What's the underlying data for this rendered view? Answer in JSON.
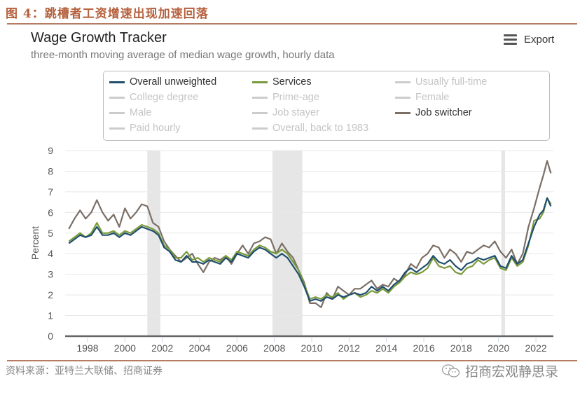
{
  "figure": {
    "title": "图 4：跳槽者工资增速出现加速回落",
    "source": "资料来源：亚特兰大联储、招商证券",
    "brand": "招商宏观静思录"
  },
  "header": {
    "export_label": "Export",
    "menu_icon": "hamburger-menu-icon"
  },
  "chart_data": {
    "type": "line",
    "title": "Wage Growth Tracker",
    "subtitle": "three-month moving average of median wage growth, hourly data",
    "xlabel": "",
    "ylabel": "Percent",
    "ylim": [
      0,
      9
    ],
    "xlim": [
      1997,
      2022.9
    ],
    "yticks": [
      "0",
      "1",
      "2",
      "3",
      "4",
      "5",
      "6",
      "7",
      "8",
      "9"
    ],
    "xticks": [
      "1998",
      "2000",
      "2002",
      "2004",
      "2006",
      "2008",
      "2010",
      "2012",
      "2014",
      "2016",
      "2018",
      "2020",
      "2022"
    ],
    "grid": true,
    "legend_position": "top",
    "recessions": [
      [
        2001.2,
        2001.9
      ],
      [
        2007.9,
        2009.5
      ],
      [
        2020.15,
        2020.35
      ]
    ],
    "legend": [
      {
        "label": "Overall unweighted",
        "color": "#1f4e6e",
        "active": true
      },
      {
        "label": "Services",
        "color": "#7a9a3a",
        "active": true
      },
      {
        "label": "Usually full-time",
        "color": "#cccccc",
        "active": false
      },
      {
        "label": "College degree",
        "color": "#cccccc",
        "active": false
      },
      {
        "label": "Prime-age",
        "color": "#cccccc",
        "active": false
      },
      {
        "label": "Female",
        "color": "#cccccc",
        "active": false
      },
      {
        "label": "Male",
        "color": "#cccccc",
        "active": false
      },
      {
        "label": "Job stayer",
        "color": "#cccccc",
        "active": false
      },
      {
        "label": "Job switcher",
        "color": "#7b6f66",
        "active": true
      },
      {
        "label": "Paid hourly",
        "color": "#cccccc",
        "active": false
      },
      {
        "label": "Overall, back to 1983",
        "color": "#cccccc",
        "active": false
      }
    ],
    "series": [
      {
        "name": "Job switcher",
        "color": "#7b6f66",
        "x": [
          1997.0,
          1997.3,
          1997.6,
          1997.9,
          1998.2,
          1998.5,
          1998.8,
          1999.1,
          1999.4,
          1999.7,
          2000.0,
          2000.3,
          2000.6,
          2000.9,
          2001.2,
          2001.5,
          2001.8,
          2002.1,
          2002.4,
          2002.7,
          2003.0,
          2003.3,
          2003.6,
          2003.9,
          2004.2,
          2004.5,
          2004.8,
          2005.1,
          2005.4,
          2005.7,
          2006.0,
          2006.3,
          2006.6,
          2006.9,
          2007.2,
          2007.5,
          2007.8,
          2008.1,
          2008.4,
          2008.7,
          2009.0,
          2009.3,
          2009.6,
          2009.9,
          2010.2,
          2010.5,
          2010.8,
          2011.1,
          2011.4,
          2011.7,
          2012.0,
          2012.3,
          2012.6,
          2012.9,
          2013.2,
          2013.5,
          2013.8,
          2014.1,
          2014.4,
          2014.7,
          2015.0,
          2015.3,
          2015.6,
          2015.9,
          2016.2,
          2016.5,
          2016.8,
          2017.1,
          2017.4,
          2017.7,
          2018.0,
          2018.3,
          2018.6,
          2018.9,
          2019.2,
          2019.5,
          2019.8,
          2020.1,
          2020.4,
          2020.7,
          2021.0,
          2021.3,
          2021.6,
          2021.9,
          2022.2,
          2022.4,
          2022.6,
          2022.8
        ],
        "y": [
          5.2,
          5.7,
          6.1,
          5.7,
          6.0,
          6.6,
          6.0,
          5.6,
          5.9,
          5.3,
          6.2,
          5.7,
          6.0,
          6.4,
          6.3,
          5.5,
          5.3,
          4.6,
          4.2,
          3.9,
          3.6,
          3.8,
          4.0,
          3.5,
          3.1,
          3.6,
          3.8,
          3.7,
          3.9,
          3.5,
          4.0,
          4.4,
          4.0,
          4.5,
          4.6,
          4.8,
          4.7,
          4.0,
          4.5,
          4.1,
          3.8,
          3.2,
          2.6,
          1.6,
          1.6,
          1.4,
          2.1,
          1.8,
          2.4,
          2.2,
          2.0,
          2.3,
          2.3,
          2.5,
          2.7,
          2.3,
          2.5,
          2.4,
          2.8,
          2.6,
          3.0,
          3.5,
          3.3,
          3.8,
          4.0,
          4.4,
          4.3,
          3.8,
          4.2,
          4.0,
          3.6,
          4.1,
          4.0,
          4.2,
          4.4,
          4.3,
          4.6,
          4.1,
          3.8,
          4.2,
          3.5,
          4.0,
          5.3,
          6.2,
          7.2,
          7.8,
          8.5,
          7.9
        ]
      },
      {
        "name": "Services",
        "color": "#7a9a3a",
        "x": [
          1997.0,
          1997.3,
          1997.6,
          1997.9,
          1998.2,
          1998.5,
          1998.8,
          1999.1,
          1999.4,
          1999.7,
          2000.0,
          2000.3,
          2000.6,
          2000.9,
          2001.2,
          2001.5,
          2001.8,
          2002.1,
          2002.4,
          2002.7,
          2003.0,
          2003.3,
          2003.6,
          2003.9,
          2004.2,
          2004.5,
          2004.8,
          2005.1,
          2005.4,
          2005.7,
          2006.0,
          2006.3,
          2006.6,
          2006.9,
          2007.2,
          2007.5,
          2007.8,
          2008.1,
          2008.4,
          2008.7,
          2009.0,
          2009.3,
          2009.6,
          2009.9,
          2010.2,
          2010.5,
          2010.8,
          2011.1,
          2011.4,
          2011.7,
          2012.0,
          2012.3,
          2012.6,
          2012.9,
          2013.2,
          2013.5,
          2013.8,
          2014.1,
          2014.4,
          2014.7,
          2015.0,
          2015.3,
          2015.6,
          2015.9,
          2016.2,
          2016.5,
          2016.8,
          2017.1,
          2017.4,
          2017.7,
          2018.0,
          2018.3,
          2018.6,
          2018.9,
          2019.2,
          2019.5,
          2019.8,
          2020.1,
          2020.4,
          2020.7,
          2021.0,
          2021.3,
          2021.6,
          2021.9,
          2022.2,
          2022.4,
          2022.6,
          2022.8
        ],
        "y": [
          4.6,
          4.8,
          5.0,
          4.8,
          5.0,
          5.5,
          5.0,
          5.0,
          5.1,
          4.9,
          5.1,
          5.0,
          5.2,
          5.4,
          5.3,
          5.2,
          5.0,
          4.4,
          4.2,
          3.8,
          3.8,
          4.1,
          3.7,
          3.8,
          3.6,
          3.8,
          3.7,
          3.6,
          3.9,
          3.7,
          4.1,
          4.0,
          3.9,
          4.2,
          4.4,
          4.3,
          4.1,
          4.0,
          4.2,
          4.0,
          3.6,
          3.2,
          2.5,
          1.8,
          1.9,
          1.8,
          2.0,
          1.9,
          2.1,
          1.8,
          2.0,
          2.1,
          1.9,
          2.0,
          2.2,
          2.1,
          2.3,
          2.1,
          2.4,
          2.6,
          2.9,
          3.1,
          3.0,
          3.1,
          3.3,
          3.8,
          3.4,
          3.3,
          3.4,
          3.1,
          3.0,
          3.3,
          3.4,
          3.7,
          3.5,
          3.7,
          3.8,
          3.3,
          3.2,
          3.8,
          3.4,
          3.6,
          4.4,
          5.6,
          5.7,
          6.0,
          6.7,
          6.4
        ]
      },
      {
        "name": "Overall unweighted",
        "color": "#1f4e6e",
        "x": [
          1997.0,
          1997.3,
          1997.6,
          1997.9,
          1998.2,
          1998.5,
          1998.8,
          1999.1,
          1999.4,
          1999.7,
          2000.0,
          2000.3,
          2000.6,
          2000.9,
          2001.2,
          2001.5,
          2001.8,
          2002.1,
          2002.4,
          2002.7,
          2003.0,
          2003.3,
          2003.6,
          2003.9,
          2004.2,
          2004.5,
          2004.8,
          2005.1,
          2005.4,
          2005.7,
          2006.0,
          2006.3,
          2006.6,
          2006.9,
          2007.2,
          2007.5,
          2007.8,
          2008.1,
          2008.4,
          2008.7,
          2009.0,
          2009.3,
          2009.6,
          2009.9,
          2010.2,
          2010.5,
          2010.8,
          2011.1,
          2011.4,
          2011.7,
          2012.0,
          2012.3,
          2012.6,
          2012.9,
          2013.2,
          2013.5,
          2013.8,
          2014.1,
          2014.4,
          2014.7,
          2015.0,
          2015.3,
          2015.6,
          2015.9,
          2016.2,
          2016.5,
          2016.8,
          2017.1,
          2017.4,
          2017.7,
          2018.0,
          2018.3,
          2018.6,
          2018.9,
          2019.2,
          2019.5,
          2019.8,
          2020.1,
          2020.4,
          2020.7,
          2021.0,
          2021.3,
          2021.6,
          2021.9,
          2022.2,
          2022.4,
          2022.6,
          2022.8
        ],
        "y": [
          4.5,
          4.7,
          4.9,
          4.8,
          4.9,
          5.3,
          4.9,
          4.9,
          5.0,
          4.8,
          5.0,
          4.9,
          5.1,
          5.3,
          5.2,
          5.1,
          4.9,
          4.3,
          4.1,
          3.7,
          3.6,
          3.9,
          3.6,
          3.6,
          3.5,
          3.7,
          3.6,
          3.5,
          3.8,
          3.6,
          4.0,
          3.9,
          3.8,
          4.1,
          4.3,
          4.2,
          4.0,
          3.8,
          4.0,
          3.8,
          3.4,
          3.0,
          2.4,
          1.7,
          1.8,
          1.7,
          1.9,
          1.8,
          2.0,
          1.9,
          2.0,
          2.1,
          2.0,
          2.1,
          2.4,
          2.2,
          2.4,
          2.2,
          2.5,
          2.7,
          3.1,
          3.3,
          3.1,
          3.3,
          3.5,
          3.9,
          3.6,
          3.5,
          3.7,
          3.4,
          3.2,
          3.5,
          3.6,
          3.8,
          3.7,
          3.8,
          3.9,
          3.4,
          3.3,
          3.9,
          3.5,
          3.7,
          4.5,
          5.3,
          5.9,
          6.1,
          6.7,
          6.3
        ]
      }
    ]
  }
}
